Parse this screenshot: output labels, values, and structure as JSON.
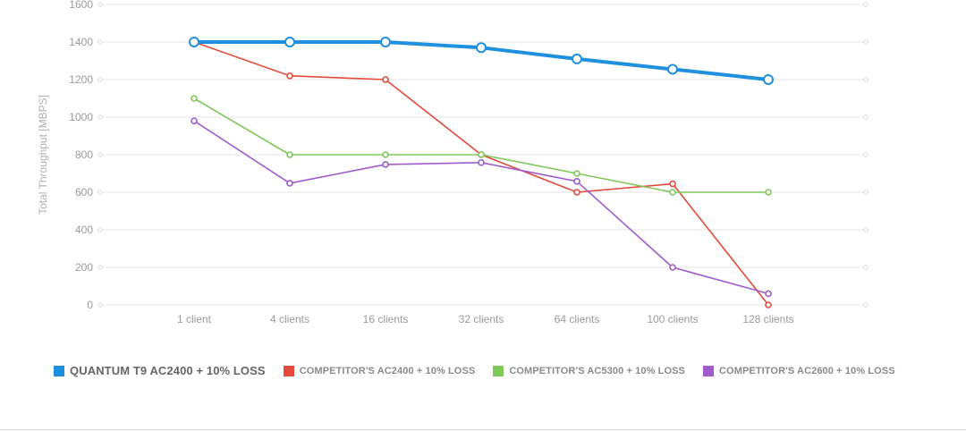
{
  "chart_data": {
    "type": "line",
    "title": "",
    "xlabel": "",
    "ylabel": "Total Throughput [MBPS]",
    "ylim": [
      0,
      1600
    ],
    "yticks": [
      0,
      200,
      400,
      600,
      800,
      1000,
      1200,
      1400,
      1600
    ],
    "categories": [
      "1 client",
      "4 clients",
      "16 clients",
      "32 clients",
      "64 clients",
      "100 clients",
      "128 clients"
    ],
    "grid": true,
    "legend_position": "bottom-left",
    "series": [
      {
        "name": "QUANTUM T9 AC2400 + 10% LOSS",
        "color": "#1e90e0",
        "primary": true,
        "values": [
          1400,
          1400,
          1400,
          1370,
          1310,
          1255,
          1200
        ]
      },
      {
        "name": "COMPETITOR'S AC2400 + 10% LOSS",
        "color": "#e24a3b",
        "primary": false,
        "values": [
          1400,
          1220,
          1200,
          800,
          600,
          645,
          0
        ]
      },
      {
        "name": "COMPETITOR'S AC5300 + 10% LOSS",
        "color": "#7ec85a",
        "primary": false,
        "values": [
          1100,
          800,
          800,
          800,
          700,
          600,
          600
        ]
      },
      {
        "name": "COMPETITOR'S AC2600 + 10% LOSS",
        "color": "#a05ccc",
        "primary": false,
        "values": [
          980,
          648,
          748,
          758,
          658,
          200,
          60
        ]
      }
    ]
  }
}
